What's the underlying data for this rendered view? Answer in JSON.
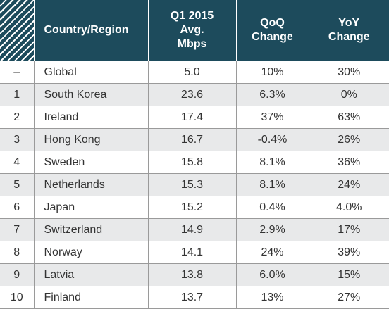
{
  "table": {
    "header": [
      "Country/Region",
      "Q1 2015 Avg. Mbps",
      "QoQ Change",
      "YoY Change"
    ],
    "rows": [
      [
        "–",
        "Global",
        "5.0",
        "10%",
        "30%"
      ],
      [
        "1",
        "South Korea",
        "23.6",
        "6.3%",
        "0%"
      ],
      [
        "2",
        "Ireland",
        "17.4",
        "37%",
        "63%"
      ],
      [
        "3",
        "Hong Kong",
        "16.7",
        "-0.4%",
        "26%"
      ],
      [
        "4",
        "Sweden",
        "15.8",
        "8.1%",
        "36%"
      ],
      [
        "5",
        "Netherlands",
        "15.3",
        "8.1%",
        "24%"
      ],
      [
        "6",
        "Japan",
        "15.2",
        "0.4%",
        "4.0%"
      ],
      [
        "7",
        "Switzerland",
        "14.9",
        "2.9%",
        "17%"
      ],
      [
        "8",
        "Norway",
        "14.1",
        "24%",
        "39%"
      ],
      [
        "9",
        "Latvia",
        "13.8",
        "6.0%",
        "15%"
      ],
      [
        "10",
        "Finland",
        "13.7",
        "13%",
        "27%"
      ]
    ]
  }
}
